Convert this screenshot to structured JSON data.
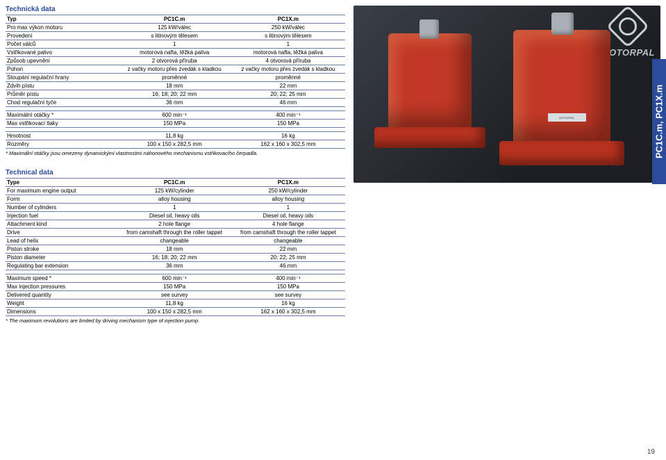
{
  "brand": "MOTORPAL",
  "side_tab": "PC1C.m, PC1X.m",
  "page_number": "19",
  "cz": {
    "title": "Technická data",
    "cols": [
      "PC1C.m",
      "PC1X.m"
    ],
    "rows1": [
      [
        "Typ",
        "PC1C.m",
        "PC1X.m"
      ],
      [
        "Pro max výkon motoru",
        "125 kW/válec",
        "250 kW/válec"
      ],
      [
        "Provedení",
        "s litinovým tělesem",
        "s litinovým tělesem"
      ],
      [
        "Počet válců",
        "1",
        "1"
      ],
      [
        "Vstřikované palivo",
        "motorová nafta, těžká paliva",
        "motorová nafta, těžká paliva"
      ],
      [
        "Způsob upevnění",
        "2 otvorová příruba",
        "4 otvorová příruba"
      ],
      [
        "Pohon",
        "z vačky motoru přes zvedák s kladkou",
        "z vačky motoru přes zvedák s kladkou"
      ],
      [
        "Stoupání regulační hrany",
        "proměnné",
        "proměnné"
      ],
      [
        "Zdvih pístu",
        "18 mm",
        "22 mm"
      ],
      [
        "Průměr pístu",
        "16; 18; 20; 22 mm",
        "20; 22; 25 mm"
      ],
      [
        "Chod regulační tyče",
        "36 mm",
        "46 mm"
      ]
    ],
    "rows2": [
      [
        "Maximální otáčky *",
        "600 min⁻¹",
        "400 min⁻¹"
      ],
      [
        "Max vstřikovací tlaky",
        "150 MPa",
        "150 MPa"
      ]
    ],
    "rows3": [
      [
        "Hmotnost",
        "11,8 kg",
        "16 kg"
      ],
      [
        "Rozměry",
        "100 x 150 x 282,5 mm",
        "162 x 160 x 302,5 mm"
      ]
    ],
    "footnote": "* Maximální otáčky jsou omezeny dynamickými vlastnostmi náhonového mechanismu vstřikovacího čerpadla."
  },
  "en": {
    "title": "Technical data",
    "rows1": [
      [
        "Type",
        "PC1C.m",
        "PC1X.m"
      ],
      [
        "For maximum engine output",
        "125 kW/cylinder",
        "250 kW/cylinder"
      ],
      [
        "Form",
        "alloy housing",
        "alloy housing"
      ],
      [
        "Number of cylinders",
        "1",
        "1"
      ],
      [
        "Injection fuel",
        "Diesel oil, heavy oils",
        "Diesel oil, heavy oils"
      ],
      [
        "Attachment kind",
        "2 hole flange",
        "4 hole flange"
      ],
      [
        "Drive",
        "from camshaft through the roller tappet",
        "from camshaft through the roller tappet"
      ],
      [
        "Lead of helix",
        "changeable",
        "changeable"
      ],
      [
        "Piston stroke",
        "18 mm",
        "22 mm"
      ],
      [
        "Piston diameter",
        "16; 18; 20; 22 mm",
        "20; 22; 25 mm"
      ],
      [
        "Regulating bar extension",
        "36 mm",
        "46 mm"
      ]
    ],
    "rows2": [
      [
        "Maximum speed *",
        "600 min⁻¹",
        "400 min⁻¹"
      ],
      [
        "Max injection pressures",
        "150 MPa",
        "150 MPa"
      ],
      [
        "Delivered quantity",
        "see survey",
        "see survey"
      ],
      [
        "Weight",
        "11,8 kg",
        "16 kg"
      ],
      [
        "Dimensions",
        "100 x 150 x 282,5 mm",
        "162 x 160 x 302,5 mm"
      ]
    ],
    "footnote": "* The maximum revolutions are limited by driving mechanism type of injection pump."
  }
}
